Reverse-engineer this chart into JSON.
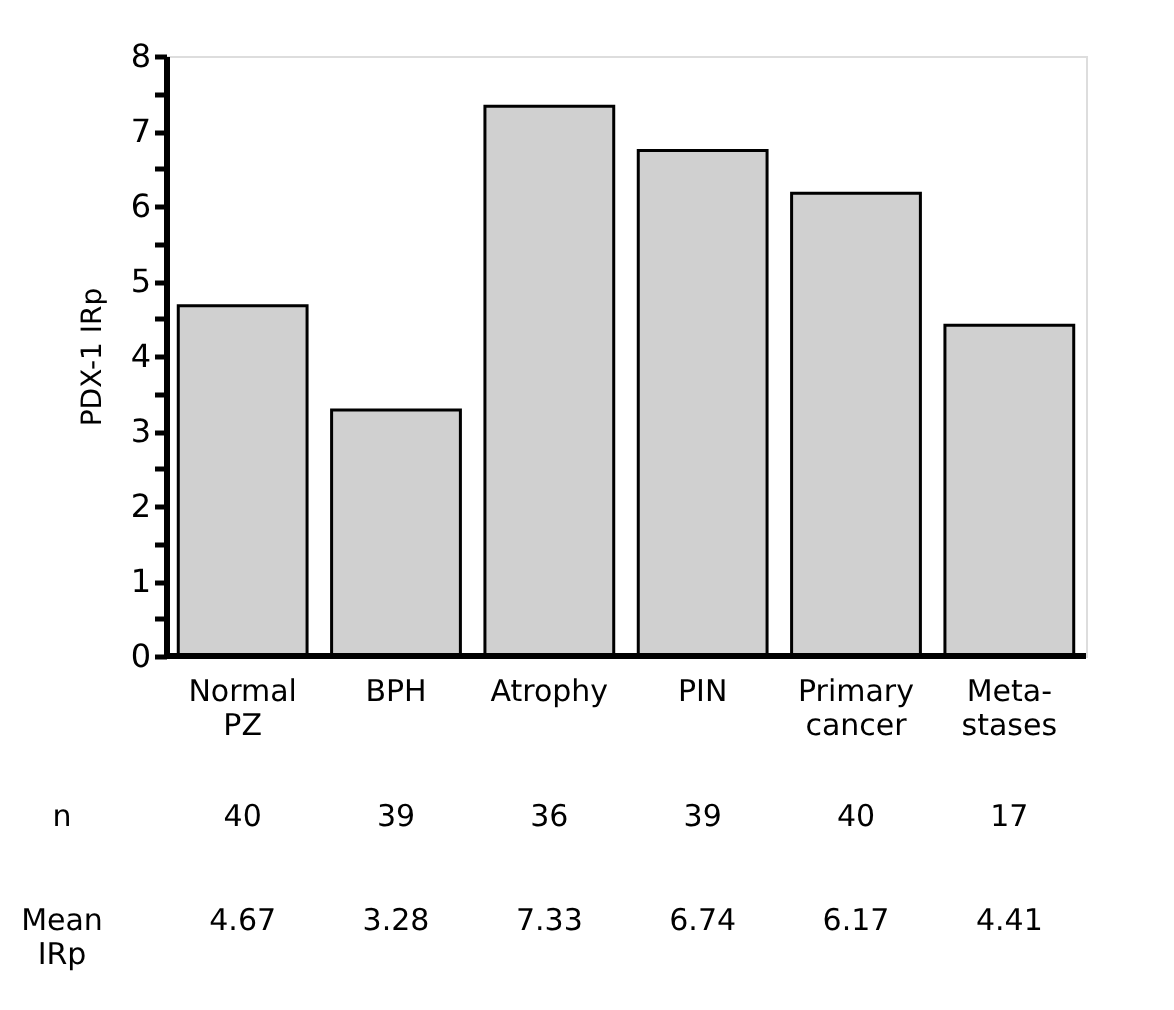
{
  "chart_data": {
    "type": "bar",
    "ylabel": "PDX-1 IRp",
    "categories": [
      "Normal PZ",
      "BPH",
      "Atrophy",
      "PIN",
      "Primary cancer",
      "Meta-stases"
    ],
    "values": [
      4.67,
      3.28,
      7.33,
      6.74,
      6.17,
      4.41
    ],
    "color": "#d0d0d0",
    "ylim": [
      0,
      8
    ],
    "yticks": [
      0,
      {
        "value": 0.5,
        "label": null
      },
      1,
      {
        "value": 1.5,
        "label": null
      },
      2,
      {
        "value": 2.5,
        "label": null
      },
      3,
      {
        "value": 3.5,
        "label": null
      },
      4,
      {
        "value": 4.5,
        "label": null
      },
      5,
      {
        "value": 5.5,
        "label": null
      },
      6,
      {
        "value": 6.5,
        "label": null
      },
      7,
      {
        "value": 7.5,
        "label": null
      },
      8
    ],
    "grid": false,
    "data_labels": true,
    "annotations": [
      "n",
      "40",
      "39",
      "36",
      "39",
      "40",
      "17",
      "Mean IRp"
    ]
  }
}
